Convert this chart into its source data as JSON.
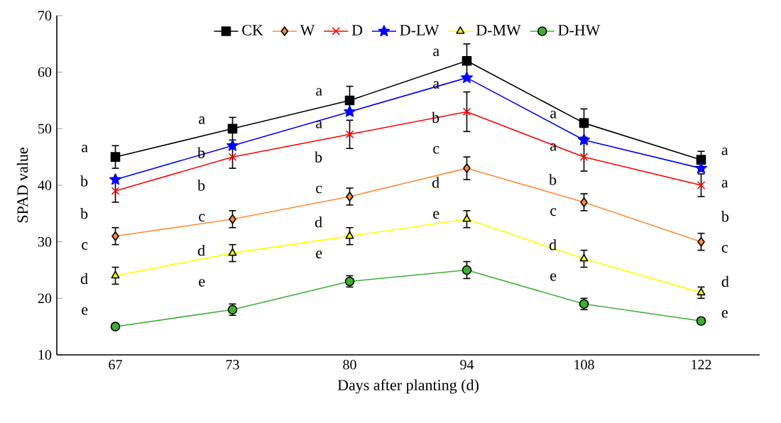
{
  "chart_data": {
    "type": "line",
    "xlabel": "Days after planting (d)",
    "ylabel": "SPAD value",
    "categories": [
      "67",
      "73",
      "80",
      "94",
      "108",
      "122"
    ],
    "ylim": [
      10,
      70
    ],
    "yticks": [
      10,
      20,
      30,
      40,
      50,
      60,
      70
    ],
    "grid": false,
    "legend": "top",
    "series": [
      {
        "name": "CK",
        "color": "#000000",
        "marker": "square",
        "values": [
          45,
          50,
          55,
          62,
          51,
          44.5
        ],
        "errors": [
          2,
          2,
          2.5,
          3,
          2.5,
          1.5
        ]
      },
      {
        "name": "W",
        "color": "#ff8c3a",
        "marker": "diamond",
        "values": [
          31,
          34,
          38,
          43,
          37,
          30
        ],
        "errors": [
          1.5,
          1.5,
          1.5,
          2,
          1.5,
          1.5
        ]
      },
      {
        "name": "D",
        "color": "#ff0000",
        "marker": "cross",
        "values": [
          39,
          45,
          49,
          53,
          45,
          40
        ],
        "errors": [
          2,
          2,
          2.5,
          3.5,
          2.5,
          2
        ]
      },
      {
        "name": "D-LW",
        "color": "#0000ff",
        "marker": "star",
        "values": [
          41,
          47,
          53,
          59,
          48,
          43
        ],
        "errors": [
          null,
          null,
          null,
          null,
          null,
          null
        ]
      },
      {
        "name": "D-MW",
        "color": "#ffff00",
        "marker": "triangle",
        "values": [
          24,
          28,
          31,
          34,
          27,
          21
        ],
        "errors": [
          1.5,
          1.5,
          1.5,
          1.5,
          1.5,
          1
        ]
      },
      {
        "name": "D-HW",
        "color": "#3cb034",
        "marker": "circle",
        "values": [
          15,
          18,
          23,
          25,
          19,
          16
        ],
        "errors": [
          0.5,
          1,
          1,
          1.5,
          1,
          0.5
        ]
      }
    ],
    "annotations": [
      "a",
      "b",
      "b",
      "c",
      "d",
      "e",
      "a",
      "b",
      "b",
      "c",
      "d",
      "e",
      "a",
      "a",
      "b",
      "c",
      "d",
      "e",
      "a",
      "a",
      "b",
      "c",
      "d",
      "e",
      "a",
      "a",
      "b",
      "c",
      "d",
      "e",
      "a",
      "a",
      "b",
      "c",
      "d",
      "e"
    ]
  }
}
